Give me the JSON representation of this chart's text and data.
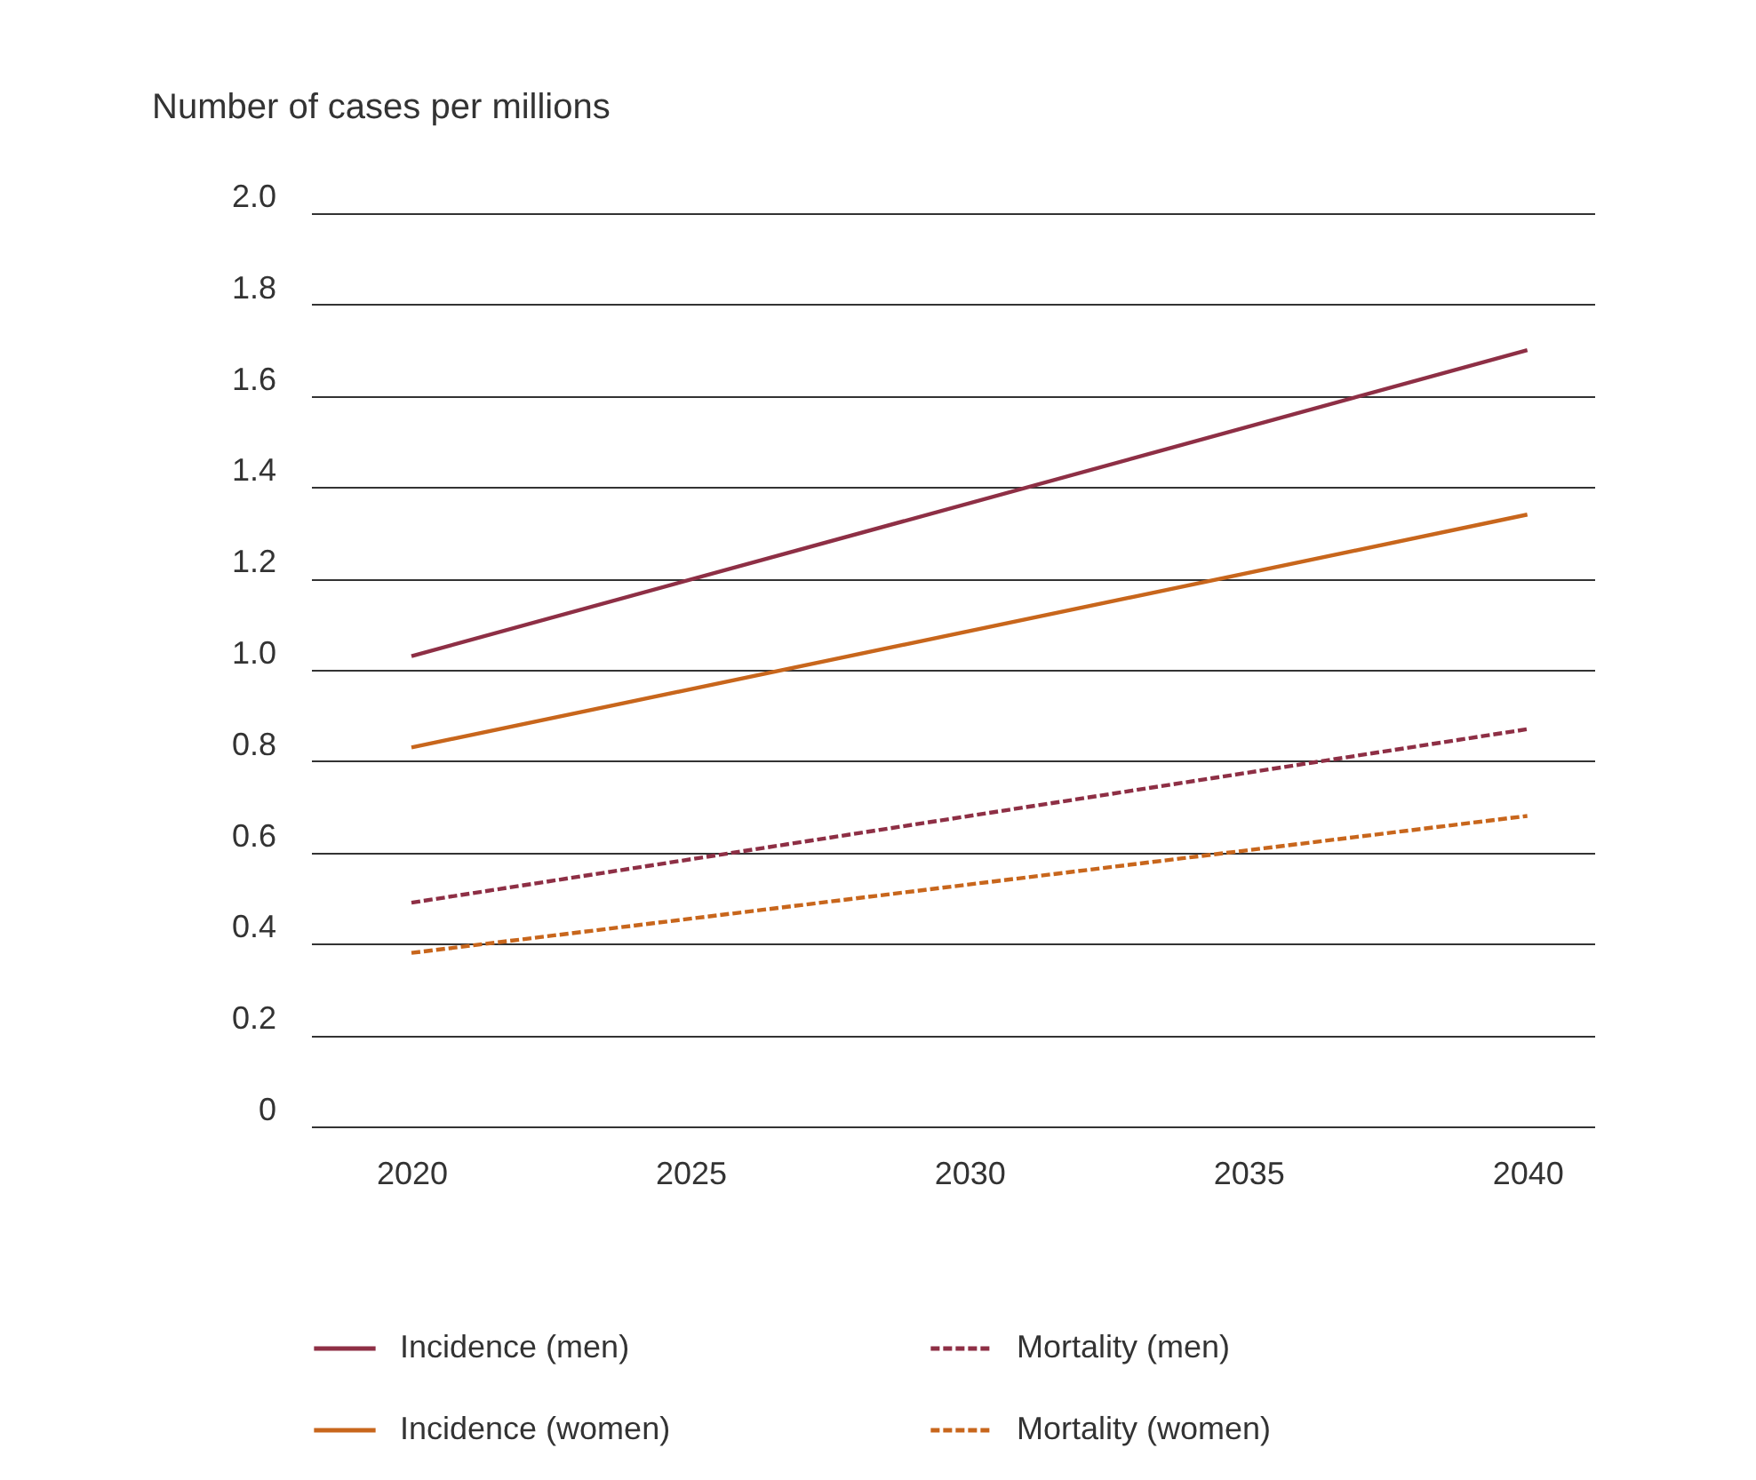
{
  "chart_data": {
    "type": "line",
    "ylabel": "Number of cases per millions",
    "x": [
      2020,
      2040
    ],
    "xlim": [
      2018.2,
      2041.2
    ],
    "xticks": [
      2020,
      2025,
      2030,
      2035,
      2040
    ],
    "ylim": [
      0,
      2.0
    ],
    "yticks": [
      {
        "value": 0,
        "label": "0"
      },
      {
        "value": 0.2,
        "label": "0.2"
      },
      {
        "value": 0.4,
        "label": "0.4"
      },
      {
        "value": 0.6,
        "label": "0.6"
      },
      {
        "value": 0.8,
        "label": "0.8"
      },
      {
        "value": 1.0,
        "label": "1.0"
      },
      {
        "value": 1.2,
        "label": "1.2"
      },
      {
        "value": 1.4,
        "label": "1.4"
      },
      {
        "value": 1.6,
        "label": "1.6"
      },
      {
        "value": 1.8,
        "label": "1.8"
      },
      {
        "value": 2.0,
        "label": "2.0"
      }
    ],
    "grid": "y",
    "legend": "bottom",
    "marker": "none",
    "series": [
      {
        "name": "Incidence (men)",
        "color": "#8e2f45",
        "line_style": "solid",
        "values": [
          1.03,
          1.7
        ]
      },
      {
        "name": "Mortality (men)",
        "color": "#8e2f45",
        "line_style": "dashed",
        "values": [
          0.49,
          0.87
        ]
      },
      {
        "name": "Incidence (women)",
        "color": "#c8661c",
        "line_style": "solid",
        "values": [
          0.83,
          1.34
        ]
      },
      {
        "name": "Mortality (women)",
        "color": "#c8661c",
        "line_style": "dashed",
        "values": [
          0.38,
          0.68
        ]
      }
    ]
  }
}
